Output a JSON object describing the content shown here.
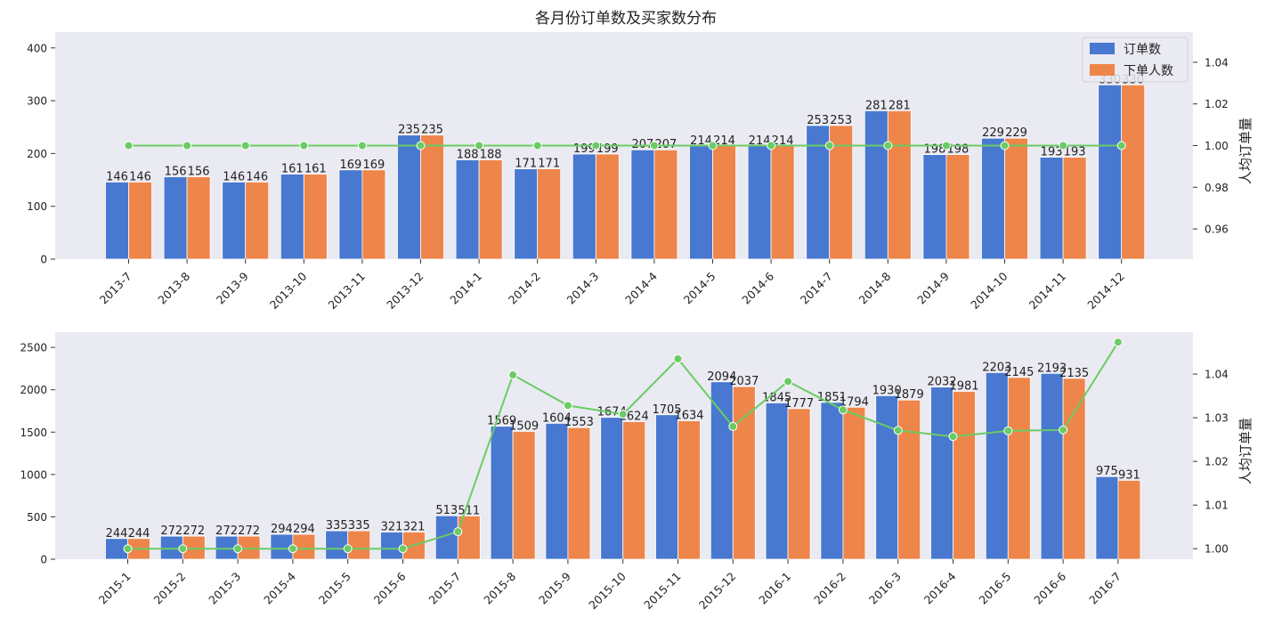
{
  "title": "各月份订单数及买家数分布",
  "colors": {
    "orders": "#4878d0",
    "buyers": "#ee854a",
    "ratio": "#6acc64",
    "panel_bg": "#eaeaf2"
  },
  "chart_data": [
    {
      "type": "bar",
      "categories": [
        "2013-7",
        "2013-8",
        "2013-9",
        "2013-10",
        "2013-11",
        "2013-12",
        "2014-1",
        "2014-2",
        "2014-3",
        "2014-4",
        "2014-5",
        "2014-6",
        "2014-7",
        "2014-8",
        "2014-9",
        "2014-10",
        "2014-11",
        "2014-12"
      ],
      "series": [
        {
          "name": "订单数",
          "values": [
            146,
            156,
            146,
            161,
            169,
            235,
            188,
            171,
            199,
            207,
            214,
            214,
            253,
            281,
            198,
            229,
            193,
            330
          ]
        },
        {
          "name": "下单人数",
          "values": [
            146,
            156,
            146,
            161,
            169,
            235,
            188,
            171,
            199,
            207,
            214,
            214,
            253,
            281,
            198,
            229,
            193,
            330
          ]
        }
      ],
      "line": {
        "values": [
          1,
          1,
          1,
          1,
          1,
          1,
          1,
          1,
          1,
          1,
          1,
          1,
          1,
          1,
          1,
          1,
          1,
          1
        ]
      },
      "ylim": [
        0,
        430
      ],
      "yticks": [
        0,
        100,
        200,
        300,
        400
      ],
      "y2lim": [
        0.9455,
        1.0545
      ],
      "y2ticks": [
        0.96,
        0.98,
        1.0,
        1.02,
        1.04
      ],
      "y2tick_labels": [
        "0.96",
        "0.98",
        "1.00",
        "1.02",
        "1.04"
      ],
      "y2label": "人均订单量",
      "legend": "top-right",
      "grid": false
    },
    {
      "type": "bar",
      "categories": [
        "2015-1",
        "2015-2",
        "2015-3",
        "2015-4",
        "2015-5",
        "2015-6",
        "2015-7",
        "2015-8",
        "2015-9",
        "2015-10",
        "2015-11",
        "2015-12",
        "2016-1",
        "2016-2",
        "2016-3",
        "2016-4",
        "2016-5",
        "2016-6",
        "2016-7"
      ],
      "series": [
        {
          "name": "订单数",
          "values": [
            244,
            272,
            272,
            294,
            335,
            321,
            513,
            1569,
            1604,
            1674,
            1705,
            2094,
            1845,
            1851,
            1930,
            2032,
            2203,
            2193,
            975
          ]
        },
        {
          "name": "下单人数",
          "values": [
            244,
            272,
            272,
            294,
            335,
            321,
            511,
            1509,
            1553,
            1624,
            1634,
            2037,
            1777,
            1794,
            1879,
            1981,
            2145,
            2135,
            931
          ]
        }
      ],
      "line": {
        "values": [
          1.0,
          1.0,
          1.0,
          1.0,
          1.0,
          1.0,
          1.0039,
          1.0398,
          1.0328,
          1.0308,
          1.0435,
          1.028,
          1.0383,
          1.0318,
          1.0271,
          1.0257,
          1.027,
          1.0272,
          1.0473
        ]
      },
      "ylim": [
        0,
        2680
      ],
      "yticks": [
        0,
        500,
        1000,
        1500,
        2000,
        2500
      ],
      "y2lim": [
        0.9976,
        1.0496
      ],
      "y2ticks": [
        1.0,
        1.01,
        1.02,
        1.03,
        1.04
      ],
      "y2tick_labels": [
        "1.00",
        "1.01",
        "1.02",
        "1.03",
        "1.04"
      ],
      "y2label": "人均订单量",
      "grid": false
    }
  ]
}
